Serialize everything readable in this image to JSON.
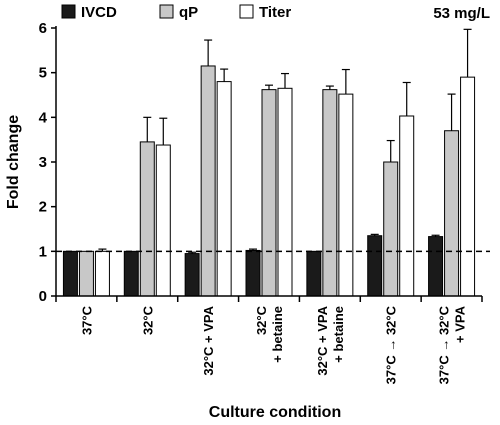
{
  "chart_data": {
    "type": "bar",
    "xlabel": "Culture condition",
    "ylabel": "Fold change",
    "ylim": [
      0,
      6
    ],
    "yticks": [
      "0",
      "1",
      "2",
      "3",
      "4",
      "5",
      "6"
    ],
    "reference_line": 1,
    "annotation": "53 mg/L",
    "legend_position": "top-left",
    "categories": [
      [
        "37°C"
      ],
      [
        "32°C"
      ],
      [
        "32°C + VPA"
      ],
      [
        "32°C",
        "+ betaine"
      ],
      [
        "32°C + VPA",
        "+ betaine"
      ],
      [
        "37°C → 32°C"
      ],
      [
        "37°C → 32°C",
        "+ VPA"
      ]
    ],
    "series": [
      {
        "name": "IVCD",
        "color": "#1a1a1a",
        "values": [
          1.0,
          1.0,
          0.95,
          1.02,
          1.0,
          1.35,
          1.33
        ],
        "errors": [
          0.0,
          0.0,
          0.03,
          0.03,
          0.0,
          0.03,
          0.03
        ]
      },
      {
        "name": "qP",
        "color": "#c8c8c8",
        "values": [
          1.0,
          3.45,
          5.15,
          4.62,
          4.62,
          3.0,
          3.7
        ],
        "errors": [
          0.0,
          0.55,
          0.58,
          0.1,
          0.08,
          0.48,
          0.82
        ]
      },
      {
        "name": "Titer",
        "color": "#ffffff",
        "values": [
          1.0,
          3.38,
          4.8,
          4.65,
          4.52,
          4.03,
          4.9
        ],
        "errors": [
          0.05,
          0.6,
          0.28,
          0.33,
          0.55,
          0.75,
          1.07
        ]
      }
    ]
  }
}
